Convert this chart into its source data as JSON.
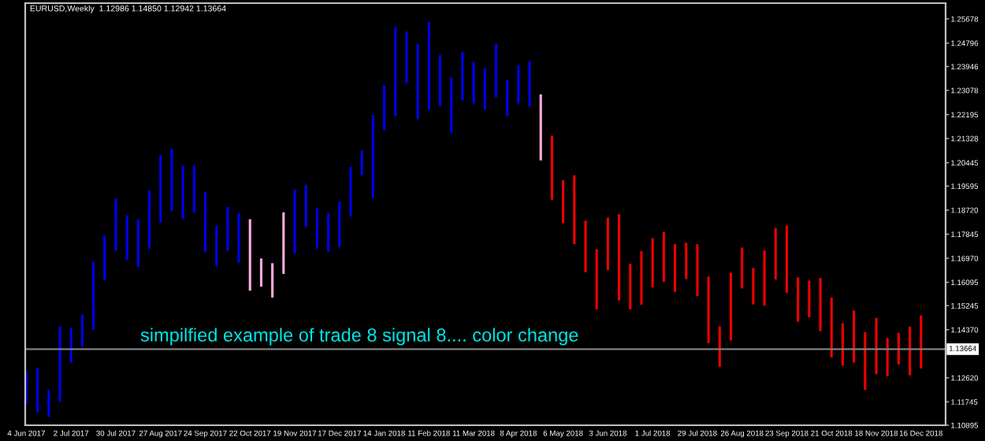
{
  "chart_data": {
    "type": "bar",
    "title": "EURUSD,Weekly  1.12986 1.14850 1.12942 1.13664",
    "categories": [
      "4 Jun 2017",
      null,
      null,
      null,
      "2 Jul 2017",
      null,
      null,
      null,
      "30 Jul 2017",
      null,
      null,
      null,
      "27 Aug 2017",
      null,
      null,
      null,
      "24 Sep 2017",
      null,
      null,
      null,
      "22 Oct 2017",
      null,
      null,
      null,
      "19 Nov 2017",
      null,
      null,
      null,
      "17 Dec 2017",
      null,
      null,
      null,
      "14 Jan 2018",
      null,
      null,
      null,
      "11 Feb 2018",
      null,
      null,
      null,
      "11 Mar 2018",
      null,
      null,
      null,
      "8 Apr 2018",
      null,
      null,
      null,
      "6 May 2018",
      null,
      null,
      null,
      "3 Jun 2018",
      null,
      null,
      null,
      "1 Jul 2018",
      null,
      null,
      null,
      "29 Jul 2018",
      null,
      null,
      null,
      "26 Aug 2018",
      null,
      null,
      null,
      "23 Sep 2018",
      null,
      null,
      null,
      "21 Oct 2018",
      null,
      null,
      null,
      "18 Nov 2018",
      null,
      null,
      null,
      "16 Dec 2018"
    ],
    "base": [
      1.1168,
      1.1135,
      1.112,
      1.1174,
      1.1316,
      1.1375,
      1.1436,
      1.1617,
      1.1723,
      1.1692,
      1.1665,
      1.1732,
      1.1826,
      1.1868,
      1.1839,
      1.1862,
      1.1719,
      1.1669,
      1.1723,
      1.168,
      1.1579,
      1.1594,
      1.1554,
      1.164,
      1.1715,
      1.1811,
      1.1732,
      1.1719,
      1.1738,
      1.1849,
      1.1999,
      1.1916,
      1.2162,
      1.2214,
      1.2334,
      1.2203,
      1.2237,
      1.2251,
      1.2153,
      1.2271,
      1.226,
      1.2237,
      1.2283,
      1.2215,
      1.226,
      1.2248,
      1.2053,
      1.191,
      1.1824,
      1.1748,
      1.1646,
      1.1511,
      1.1654,
      1.1543,
      1.1511,
      1.1528,
      1.1591,
      1.1611,
      1.1575,
      1.1621,
      1.156,
      1.1388,
      1.1302,
      1.1398,
      1.1587,
      1.1529,
      1.1525,
      1.162,
      1.1571,
      1.1466,
      1.1482,
      1.1432,
      1.1336,
      1.1306,
      1.1317,
      1.1218,
      1.1275,
      1.1268,
      1.1311,
      1.1271,
      1.1296
    ],
    "values": [
      0.0119,
      0.0163,
      0.0098,
      0.0274,
      0.0127,
      0.0118,
      0.0248,
      0.0163,
      0.0191,
      0.0161,
      0.0174,
      0.0211,
      0.0247,
      0.0228,
      0.0194,
      0.0172,
      0.0218,
      0.0146,
      0.016,
      0.0182,
      0.026,
      0.0102,
      0.0125,
      0.0224,
      0.0232,
      0.0153,
      0.0147,
      0.0143,
      0.0166,
      0.018,
      0.0091,
      0.0302,
      0.0165,
      0.0324,
      0.0188,
      0.0273,
      0.032,
      0.0185,
      0.0203,
      0.0176,
      0.0151,
      0.0151,
      0.0193,
      0.0129,
      0.0138,
      0.0165,
      0.024,
      0.0233,
      0.0157,
      0.0251,
      0.0188,
      0.0219,
      0.0191,
      0.0314,
      0.0166,
      0.0195,
      0.0179,
      0.0182,
      0.0173,
      0.0132,
      0.0188,
      0.0243,
      0.0147,
      0.0246,
      0.0149,
      0.0132,
      0.02,
      0.0187,
      0.0245,
      0.0161,
      0.0134,
      0.0193,
      0.0218,
      0.0155,
      0.019,
      0.021,
      0.0205,
      0.0139,
      0.0115,
      0.0177,
      0.0193
    ],
    "colors": [
      "#0000ee",
      "#0000ee",
      "#0000ee",
      "#0000ee",
      "#0000ee",
      "#0000ee",
      "#0000ee",
      "#0000ee",
      "#0000ee",
      "#0000ee",
      "#0000ee",
      "#0000ee",
      "#0000ee",
      "#0000ee",
      "#0000ee",
      "#0000ee",
      "#0000ee",
      "#0000ee",
      "#0000ee",
      "#0000ee",
      "#ffaadd",
      "#ffaadd",
      "#ffaadd",
      "#ffaadd",
      "#0000ee",
      "#0000ee",
      "#0000ee",
      "#0000ee",
      "#0000ee",
      "#0000ee",
      "#0000ee",
      "#0000ee",
      "#0000ee",
      "#0000ee",
      "#0000ee",
      "#0000ee",
      "#0000ee",
      "#0000ee",
      "#0000ee",
      "#0000ee",
      "#0000ee",
      "#0000ee",
      "#0000ee",
      "#0000ee",
      "#0000ee",
      "#0000ee",
      "#ffaadd",
      "#ee0000",
      "#ee0000",
      "#ee0000",
      "#ee0000",
      "#ee0000",
      "#ee0000",
      "#ee0000",
      "#ee0000",
      "#ee0000",
      "#ee0000",
      "#ee0000",
      "#ee0000",
      "#ee0000",
      "#ee0000",
      "#ee0000",
      "#ee0000",
      "#ee0000",
      "#ee0000",
      "#ee0000",
      "#ee0000",
      "#ee0000",
      "#ee0000",
      "#ee0000",
      "#ee0000",
      "#ee0000",
      "#ee0000",
      "#ee0000",
      "#ee0000",
      "#ee0000",
      "#ee0000",
      "#ee0000",
      "#ee0000",
      "#ee0000",
      "#ee0000"
    ],
    "ylim": [
      1.10895,
      1.2625
    ],
    "yticks": [
      1.10895,
      1.11745,
      {
        "value": 1.1262,
        "label": "1.12620"
      },
      {
        "value": 1.1437,
        "label": "1.14370"
      },
      1.15245,
      1.16095,
      {
        "value": 1.1697,
        "label": "1.16970"
      },
      1.17845,
      {
        "value": 1.1872,
        "label": "1.18720"
      },
      1.19595,
      1.20445,
      1.21328,
      1.22195,
      1.23078,
      1.23946,
      1.24796,
      1.25678
    ],
    "ref_lines": [
      {
        "axis": "y",
        "value": 1.13664,
        "label": "1.13664",
        "color": "#7f7f7f"
      }
    ],
    "annotations": [
      "simpilfied example of trade 8 signal 8.... color change"
    ]
  }
}
